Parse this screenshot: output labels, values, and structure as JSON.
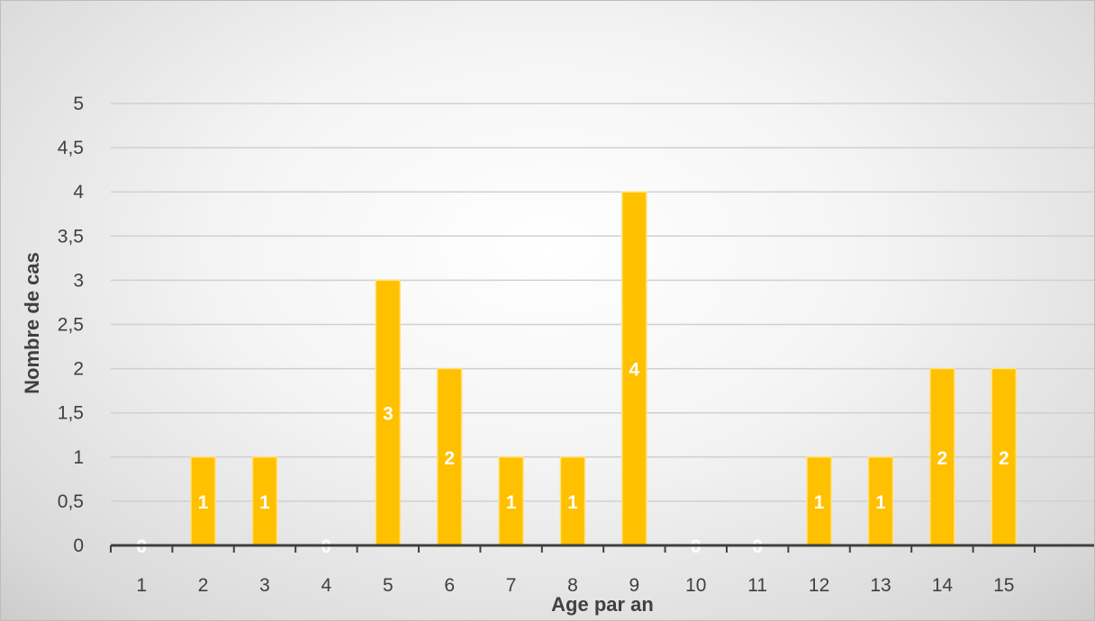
{
  "chart_data": {
    "type": "bar",
    "title": "",
    "xlabel": "Age par an",
    "ylabel": "Nombre de cas",
    "categories": [
      "1",
      "2",
      "3",
      "4",
      "5",
      "6",
      "7",
      "8",
      "9",
      "10",
      "11",
      "12",
      "13",
      "14",
      "15"
    ],
    "values": [
      0,
      1,
      1,
      0,
      3,
      2,
      1,
      1,
      4,
      0,
      0,
      1,
      1,
      2,
      2
    ],
    "data_labels": [
      "0",
      "1",
      "1",
      "0",
      "3",
      "2",
      "1",
      "1",
      "4",
      "0",
      "0",
      "1",
      "1",
      "2",
      "2"
    ],
    "y_ticks": [
      "0",
      "0,5",
      "1",
      "1,5",
      "2",
      "2,5",
      "3",
      "3,5",
      "4",
      "4,5",
      "5"
    ],
    "ylim": [
      0,
      5
    ],
    "grid": true,
    "legend": "none",
    "colors": {
      "bar": "#FFC000",
      "bar_edge": "#ffe27a",
      "grid": "#d0d0d0",
      "axis": "#404040",
      "text": "#404040",
      "label": "#ffffff"
    }
  }
}
